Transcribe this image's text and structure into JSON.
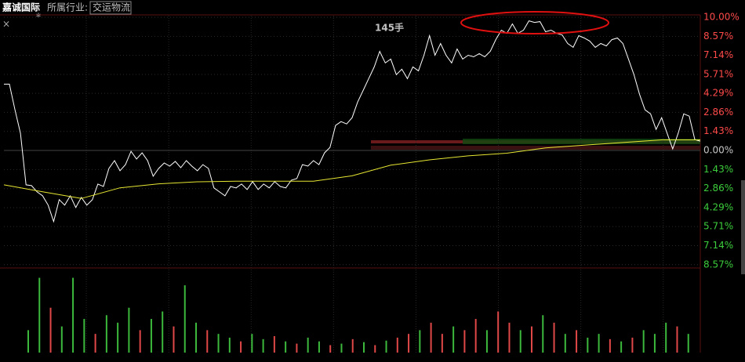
{
  "header": {
    "stock": "嘉诚国际",
    "industry_label": "所属行业:",
    "industry": "交运物流"
  },
  "chart_data": {
    "type": "line",
    "annotation": "145手",
    "up_color": "#ff4a4a",
    "down_color": "#3ccd3c",
    "flat_color": "#c8c8c8",
    "ylim": [
      -8.7,
      11
    ],
    "yticks": [
      {
        "value": 10,
        "label": "10.00%"
      },
      {
        "value": 8.57,
        "label": "8.57%"
      },
      {
        "value": 7.14,
        "label": "7.14%"
      },
      {
        "value": 5.71,
        "label": "5.71%"
      },
      {
        "value": 4.29,
        "label": "4.29%"
      },
      {
        "value": 2.86,
        "label": "2.86%"
      },
      {
        "value": 1.43,
        "label": "1.43%"
      },
      {
        "value": 0,
        "label": "0.00%"
      },
      {
        "value": -1.43,
        "label": "1.43%"
      },
      {
        "value": -2.86,
        "label": "2.86%"
      },
      {
        "value": -4.29,
        "label": "4.29%"
      },
      {
        "value": -5.71,
        "label": "5.71%"
      },
      {
        "value": -7.14,
        "label": "7.14%"
      },
      {
        "value": -8.57,
        "label": "8.57%"
      }
    ],
    "grid": true,
    "series": [
      {
        "color": "#ffffff",
        "values": [
          4.98,
          4.98,
          3.05,
          1.29,
          -2.58,
          -2.64,
          -3.11,
          -3.4,
          -4.1,
          -5.33,
          -3.69,
          -4.1,
          -3.4,
          -4.28,
          -3.52,
          -4.1,
          -3.69,
          -2.52,
          -2.7,
          -1.35,
          -0.76,
          -1.52,
          -1.06,
          -0.06,
          -0.64,
          -0.18,
          -0.76,
          -1.93,
          -1.35,
          -0.94,
          -1.17,
          -0.82,
          -1.29,
          -0.76,
          -1.17,
          -1.52,
          -1.06,
          -1.35,
          -2.81,
          -3.11,
          -3.4,
          -2.7,
          -2.81,
          -2.52,
          -2.93,
          -2.34,
          -2.93,
          -2.52,
          -2.81,
          -2.34,
          -2.7,
          -2.81,
          -2.23,
          -2.11,
          -1.06,
          -1.17,
          -0.76,
          -1.06,
          -0.18,
          0.23,
          1.88,
          2.17,
          1.99,
          2.46,
          3.63,
          4.51,
          5.39,
          6.27,
          7.44,
          6.57,
          6.86,
          5.69,
          6.1,
          5.39,
          6.27,
          5.98,
          7.15,
          8.62,
          7.15,
          8.03,
          7.15,
          6.57,
          7.62,
          6.86,
          7.15,
          7.03,
          7.27,
          7.03,
          7.44,
          8.32,
          9.03,
          8.79,
          9.5,
          8.79,
          9.03,
          9.73,
          9.61,
          9.67,
          8.91,
          9.03,
          8.79,
          8.68,
          8.03,
          7.74,
          8.62,
          8.44,
          8.21,
          7.74,
          8.03,
          7.85,
          8.32,
          8.44,
          8.03,
          6.86,
          5.69,
          4.22,
          3.05,
          2.75,
          1.58,
          2.46,
          1.29,
          0.12,
          1.29,
          2.75,
          2.58,
          0.82,
          0.7
        ]
      },
      {
        "color": "#e6e632",
        "values": [
          -2.58,
          -3.1,
          -3.6,
          -2.8,
          -2.5,
          -2.35,
          -2.3,
          -2.3,
          -2.3,
          -1.9,
          -1.1,
          -0.7,
          -0.4,
          -0.2,
          0.2,
          0.4,
          0.6,
          0.8,
          0.8
        ]
      }
    ],
    "volume": {
      "ylim": [
        0,
        110
      ],
      "values": [
        30,
        100,
        60,
        35,
        100,
        45,
        25,
        50,
        40,
        60,
        30,
        45,
        55,
        35,
        90,
        40,
        30,
        25,
        20,
        15,
        25,
        18,
        22,
        15,
        12,
        20,
        15,
        10,
        12,
        18,
        14,
        10,
        16,
        20,
        25,
        30,
        40,
        25,
        35,
        30,
        45,
        30,
        55,
        40,
        30,
        35,
        50,
        40,
        25,
        30,
        20,
        25,
        18,
        15,
        20,
        30,
        25,
        40,
        35,
        25
      ],
      "colors": [
        "#3cb83c",
        "#3cb83c",
        "#e04848",
        "#3cb83c",
        "#3cb83c",
        "#3cb83c",
        "#e04848",
        "#3cb83c",
        "#3cb83c",
        "#3cb83c",
        "#e04848",
        "#3cb83c",
        "#3cb83c",
        "#e04848",
        "#3cb83c",
        "#3cb83c",
        "#e04848",
        "#3cb83c",
        "#3cb83c",
        "#e04848",
        "#3cb83c",
        "#3cb83c",
        "#e04848",
        "#3cb83c",
        "#e04848",
        "#3cb83c",
        "#3cb83c",
        "#e04848",
        "#3cb83c",
        "#e04848",
        "#3cb83c",
        "#e04848",
        "#3cb83c",
        "#e04848",
        "#e04848",
        "#3cb83c",
        "#e04848",
        "#e04848",
        "#3cb83c",
        "#e04848",
        "#e04848",
        "#3cb83c",
        "#e04848",
        "#e04848",
        "#3cb83c",
        "#e04848",
        "#3cb83c",
        "#e04848",
        "#3cb83c",
        "#e04848",
        "#3cb83c",
        "#3cb83c",
        "#e04848",
        "#3cb83c",
        "#e04848",
        "#3cb83c",
        "#3cb83c",
        "#3cb83c",
        "#e04848",
        "#3cb83c"
      ]
    }
  }
}
